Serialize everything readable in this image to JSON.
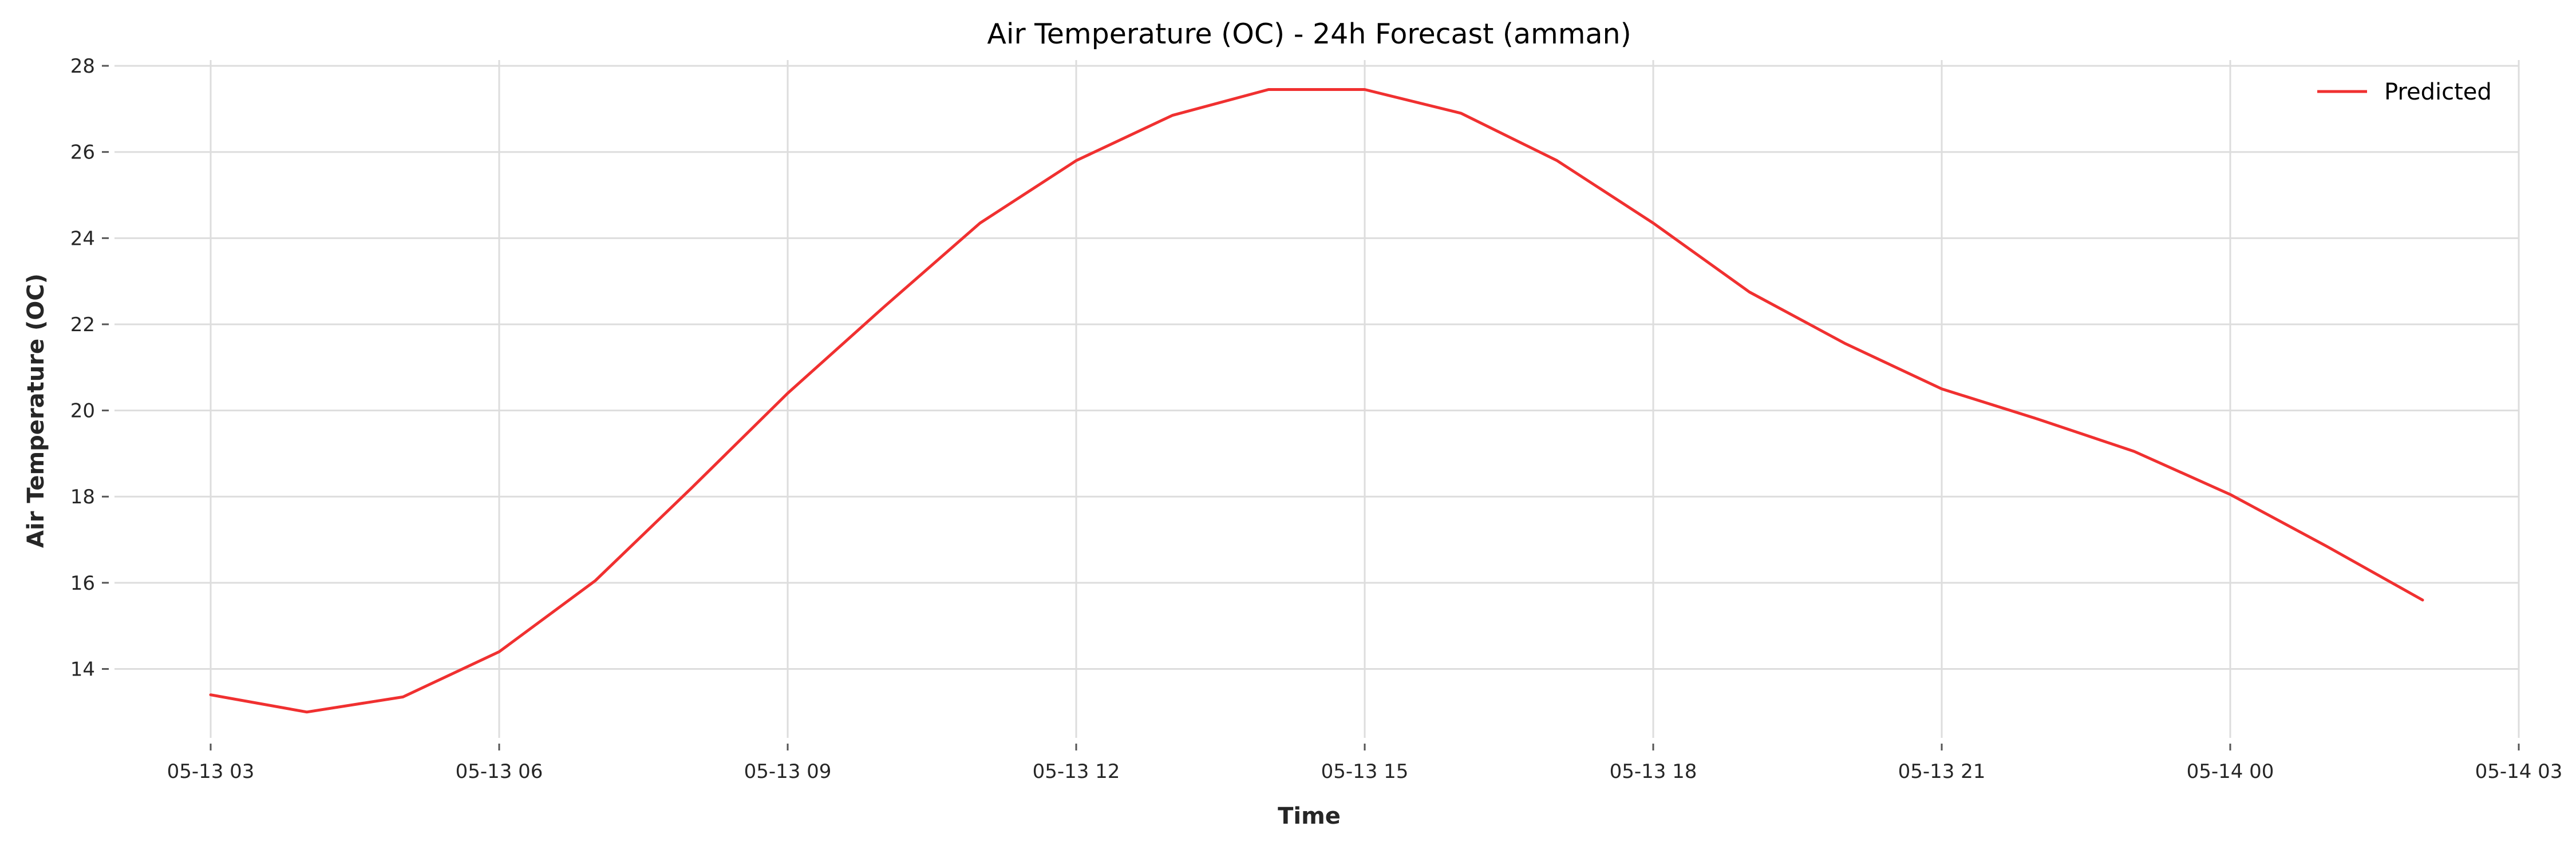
{
  "chart_data": {
    "type": "line",
    "title": "Air Temperature (OC) - 24h Forecast (amman)",
    "xlabel": "Time",
    "ylabel": "Air Temperature (OC)",
    "x": [
      "2024-05-13 03:00",
      "2024-05-13 04:00",
      "2024-05-13 05:00",
      "2024-05-13 06:00",
      "2024-05-13 07:00",
      "2024-05-13 08:00",
      "2024-05-13 09:00",
      "2024-05-13 10:00",
      "2024-05-13 11:00",
      "2024-05-13 12:00",
      "2024-05-13 13:00",
      "2024-05-13 14:00",
      "2024-05-13 15:00",
      "2024-05-13 16:00",
      "2024-05-13 17:00",
      "2024-05-13 18:00",
      "2024-05-13 19:00",
      "2024-05-13 20:00",
      "2024-05-13 21:00",
      "2024-05-13 22:00",
      "2024-05-13 23:00",
      "2024-05-14 00:00",
      "2024-05-14 01:00",
      "2024-05-14 02:00"
    ],
    "series": [
      {
        "name": "Predicted",
        "color": "#f03030",
        "values": [
          13.4,
          13.0,
          13.35,
          14.4,
          16.05,
          18.2,
          20.4,
          22.4,
          24.35,
          25.8,
          26.85,
          27.45,
          27.45,
          26.9,
          25.8,
          24.35,
          22.75,
          21.55,
          20.5,
          19.8,
          19.05,
          18.05,
          16.85,
          15.6
        ]
      }
    ],
    "x_ticks": [
      "05-13 03",
      "05-13 06",
      "05-13 09",
      "05-13 12",
      "05-13 15",
      "05-13 18",
      "05-13 21",
      "05-14 00",
      "05-14 03"
    ],
    "y_ticks": [
      "14",
      "16",
      "18",
      "20",
      "22",
      "24",
      "26",
      "28"
    ],
    "xlim": [
      "2024-05-13 02:00",
      "2024-05-14 03:00"
    ],
    "ylim": [
      12.4,
      28.2
    ],
    "grid": true,
    "legend_position": "top-right"
  }
}
